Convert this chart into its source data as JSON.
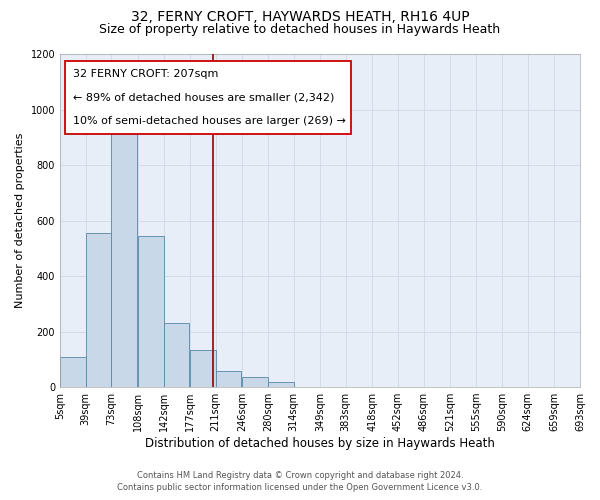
{
  "title": "32, FERNY CROFT, HAYWARDS HEATH, RH16 4UP",
  "subtitle": "Size of property relative to detached houses in Haywards Heath",
  "xlabel": "Distribution of detached houses by size in Haywards Heath",
  "ylabel": "Number of detached properties",
  "bar_color": "#c8d8e8",
  "bar_edge_color": "#5588aa",
  "bins": [
    5,
    39,
    73,
    108,
    142,
    177,
    211,
    246,
    280,
    314,
    349,
    383,
    418,
    452,
    486,
    521,
    555,
    590,
    624,
    659,
    693
  ],
  "counts": [
    110,
    555,
    920,
    545,
    230,
    135,
    57,
    35,
    18,
    0,
    0,
    0,
    0,
    0,
    0,
    0,
    0,
    0,
    0,
    0
  ],
  "tick_labels": [
    "5sqm",
    "39sqm",
    "73sqm",
    "108sqm",
    "142sqm",
    "177sqm",
    "211sqm",
    "246sqm",
    "280sqm",
    "314sqm",
    "349sqm",
    "383sqm",
    "418sqm",
    "452sqm",
    "486sqm",
    "521sqm",
    "555sqm",
    "590sqm",
    "624sqm",
    "659sqm",
    "693sqm"
  ],
  "vline_x": 207,
  "vline_color": "#990000",
  "annotation_line1": "32 FERNY CROFT: 207sqm",
  "annotation_line2": "← 89% of detached houses are smaller (2,342)",
  "annotation_line3": "10% of semi-detached houses are larger (269) →",
  "ylim": [
    0,
    1200
  ],
  "yticks": [
    0,
    200,
    400,
    600,
    800,
    1000,
    1200
  ],
  "grid_color": "#d0d8e8",
  "background_color": "#e8eef8",
  "footer_line1": "Contains HM Land Registry data © Crown copyright and database right 2024.",
  "footer_line2": "Contains public sector information licensed under the Open Government Licence v3.0.",
  "title_fontsize": 10,
  "subtitle_fontsize": 9,
  "xlabel_fontsize": 8.5,
  "ylabel_fontsize": 8,
  "tick_fontsize": 7,
  "annotation_fontsize": 8,
  "footer_fontsize": 6
}
